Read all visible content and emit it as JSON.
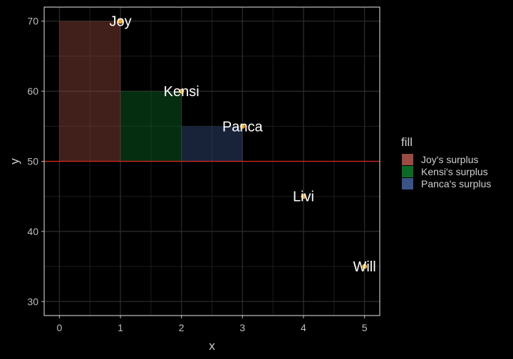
{
  "chart_data": {
    "type": "scatter",
    "xlabel": "x",
    "ylabel": "y",
    "xlim": [
      -0.25,
      5.25
    ],
    "ylim": [
      28,
      72
    ],
    "x_ticks": [
      0,
      1,
      2,
      3,
      4,
      5
    ],
    "y_ticks": [
      30,
      40,
      50,
      60,
      70
    ],
    "grid": true,
    "points": [
      {
        "label": "Joy",
        "x": 1,
        "y": 70
      },
      {
        "label": "Kensi",
        "x": 2,
        "y": 60
      },
      {
        "label": "Panca",
        "x": 3,
        "y": 55
      },
      {
        "label": "Livi",
        "x": 4,
        "y": 45
      },
      {
        "label": "Will",
        "x": 5,
        "y": 35
      }
    ],
    "reference_line": {
      "y": 50,
      "color": "#d7261e"
    },
    "rects": [
      {
        "series": "Joy's surplus",
        "x0": 0,
        "x1": 1,
        "y0": 50,
        "y1": 70,
        "color": "#9b4b41"
      },
      {
        "series": "Kensi's surplus",
        "x0": 1,
        "x1": 2,
        "y0": 50,
        "y1": 60,
        "color": "#0b6b26"
      },
      {
        "series": "Panca's surplus",
        "x0": 2,
        "x1": 3,
        "y0": 50,
        "y1": 55,
        "color": "#3a5487"
      }
    ],
    "legend": {
      "title": "fill",
      "position": "right",
      "entries": [
        {
          "label": "Joy's surplus",
          "color": "#9b4b41"
        },
        {
          "label": "Kensi's surplus",
          "color": "#0b6b26"
        },
        {
          "label": "Panca's surplus",
          "color": "#3a5487"
        }
      ]
    },
    "point_color": "#f5a623",
    "background": "#000000",
    "panel_border": "#e6e6e6"
  }
}
